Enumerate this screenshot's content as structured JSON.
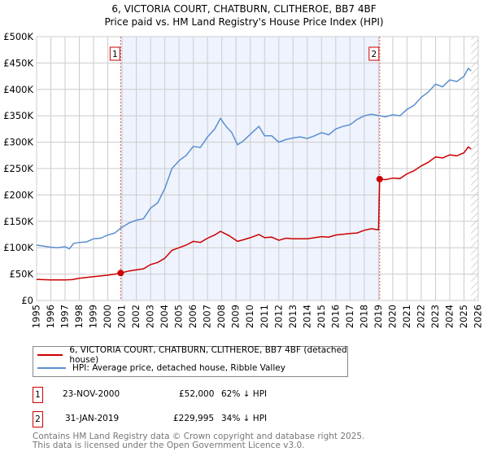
{
  "title": "6, VICTORIA COURT, CHATBURN, CLITHEROE, BB7 4BF",
  "subtitle": "Price paid vs. HM Land Registry's House Price Index (HPI)",
  "chart_data": {
    "type": "line",
    "title": "6, VICTORIA COURT, CHATBURN, CLITHEROE, BB7 4BF",
    "xlabel": "",
    "ylabel": "",
    "xlim": [
      1995,
      2026
    ],
    "ylim": [
      0,
      500000
    ],
    "x_ticks": [
      "1995",
      "1996",
      "1997",
      "1998",
      "1999",
      "2000",
      "2001",
      "2002",
      "2003",
      "2004",
      "2005",
      "2006",
      "2007",
      "2008",
      "2009",
      "2010",
      "2011",
      "2012",
      "2013",
      "2014",
      "2015",
      "2016",
      "2017",
      "2018",
      "2019",
      "2020",
      "2021",
      "2022",
      "2023",
      "2024",
      "2025",
      "2026"
    ],
    "y_ticks": [
      {
        "v": 0,
        "label": "£0"
      },
      {
        "v": 50000,
        "label": "£50K"
      },
      {
        "v": 100000,
        "label": "£100K"
      },
      {
        "v": 150000,
        "label": "£150K"
      },
      {
        "v": 200000,
        "label": "£200K"
      },
      {
        "v": 250000,
        "label": "£250K"
      },
      {
        "v": 300000,
        "label": "£300K"
      },
      {
        "v": 350000,
        "label": "£350K"
      },
      {
        "v": 400000,
        "label": "£400K"
      },
      {
        "v": 450000,
        "label": "£450K"
      },
      {
        "v": 500000,
        "label": "£500K"
      }
    ],
    "grid": true,
    "shaded_range": [
      2000.9,
      2019.08
    ],
    "forecast_hatch_from": 2025.5,
    "series": [
      {
        "name": "6, VICTORIA COURT, CHATBURN, CLITHEROE, BB7 4BF (detached house)",
        "color": "#cc0000",
        "x": [
          1995,
          1996,
          1997,
          1997.5,
          1998,
          1999,
          2000,
          2000.5,
          2000.9,
          2001.5,
          2002,
          2002.5,
          2003,
          2003.5,
          2004,
          2004.5,
          2005,
          2005.5,
          2006,
          2006.5,
          2007,
          2007.5,
          2007.9,
          2008.5,
          2009.1,
          2009.5,
          2010,
          2010.6,
          2011,
          2011.5,
          2012,
          2012.5,
          2013,
          2014,
          2015,
          2015.5,
          2016,
          2017,
          2017.5,
          2018,
          2018.5,
          2019.0,
          2019.08,
          2019.5,
          2020,
          2020.5,
          2021,
          2021.5,
          2022,
          2022.5,
          2023,
          2023.5,
          2024,
          2024.5,
          2025,
          2025.3,
          2025.5
        ],
        "y": [
          40000,
          39000,
          39000,
          39500,
          42000,
          45000,
          48000,
          50000,
          52000,
          56000,
          58000,
          60000,
          68000,
          72000,
          80000,
          95000,
          100000,
          105000,
          112000,
          110000,
          118000,
          124000,
          131000,
          123000,
          112000,
          115000,
          119000,
          125000,
          119000,
          120000,
          114000,
          118000,
          117000,
          117000,
          121000,
          120000,
          124000,
          127000,
          128000,
          133000,
          136000,
          134000,
          229995,
          229000,
          232000,
          231000,
          240000,
          246000,
          255000,
          262000,
          272000,
          270000,
          276000,
          274000,
          280000,
          291000,
          287000
        ]
      },
      {
        "name": "HPI: Average price, detached house, Ribble Valley",
        "color": "#5b8fd0",
        "x": [
          1995,
          1995.5,
          1996,
          1996.5,
          1997,
          1997.3,
          1997.6,
          1998,
          1998.5,
          1999,
          1999.5,
          2000,
          2000.5,
          2000.9,
          2001.5,
          2002,
          2002.5,
          2003,
          2003.5,
          2004,
          2004.5,
          2005,
          2005.5,
          2006,
          2006.5,
          2007,
          2007.5,
          2007.9,
          2008.3,
          2008.7,
          2009.1,
          2009.5,
          2010,
          2010.6,
          2011,
          2011.5,
          2012,
          2012.5,
          2013,
          2013.5,
          2014,
          2014.5,
          2015,
          2015.5,
          2016,
          2016.5,
          2017,
          2017.5,
          2018,
          2018.5,
          2019.08,
          2019.5,
          2020,
          2020.5,
          2021,
          2021.5,
          2022,
          2022.5,
          2023,
          2023.5,
          2024,
          2024.5,
          2025,
          2025.3,
          2025.5
        ],
        "y": [
          105000,
          103000,
          101000,
          100000,
          102000,
          98000,
          108000,
          110000,
          111000,
          117000,
          118000,
          124000,
          128000,
          137000,
          147000,
          152000,
          155000,
          175000,
          185000,
          212000,
          250000,
          265000,
          275000,
          292000,
          290000,
          310000,
          325000,
          345000,
          330000,
          318000,
          295000,
          302000,
          315000,
          330000,
          312000,
          312000,
          300000,
          305000,
          308000,
          310000,
          307000,
          312000,
          318000,
          314000,
          325000,
          330000,
          333000,
          343000,
          350000,
          353000,
          350000,
          348000,
          352000,
          350000,
          362000,
          370000,
          385000,
          395000,
          410000,
          405000,
          418000,
          415000,
          425000,
          440000,
          435000
        ]
      }
    ],
    "annotations": [
      {
        "label": "1",
        "x": 2000.9,
        "y": 52000
      },
      {
        "label": "2",
        "x": 2019.08,
        "y": 229995
      }
    ]
  },
  "legend": {
    "red_label": "6, VICTORIA COURT, CHATBURN, CLITHEROE, BB7 4BF (detached house)",
    "blue_label": "HPI: Average price, detached house, Ribble Valley"
  },
  "transactions": [
    {
      "num": "1",
      "date": "23-NOV-2000",
      "price": "£52,000",
      "hpi": "62% ↓ HPI"
    },
    {
      "num": "2",
      "date": "31-JAN-2019",
      "price": "£229,995",
      "hpi": "34% ↓ HPI"
    }
  ],
  "footer": {
    "line1": "Contains HM Land Registry data © Crown copyright and database right 2025.",
    "line2": "This data is licensed under the Open Government Licence v3.0."
  }
}
